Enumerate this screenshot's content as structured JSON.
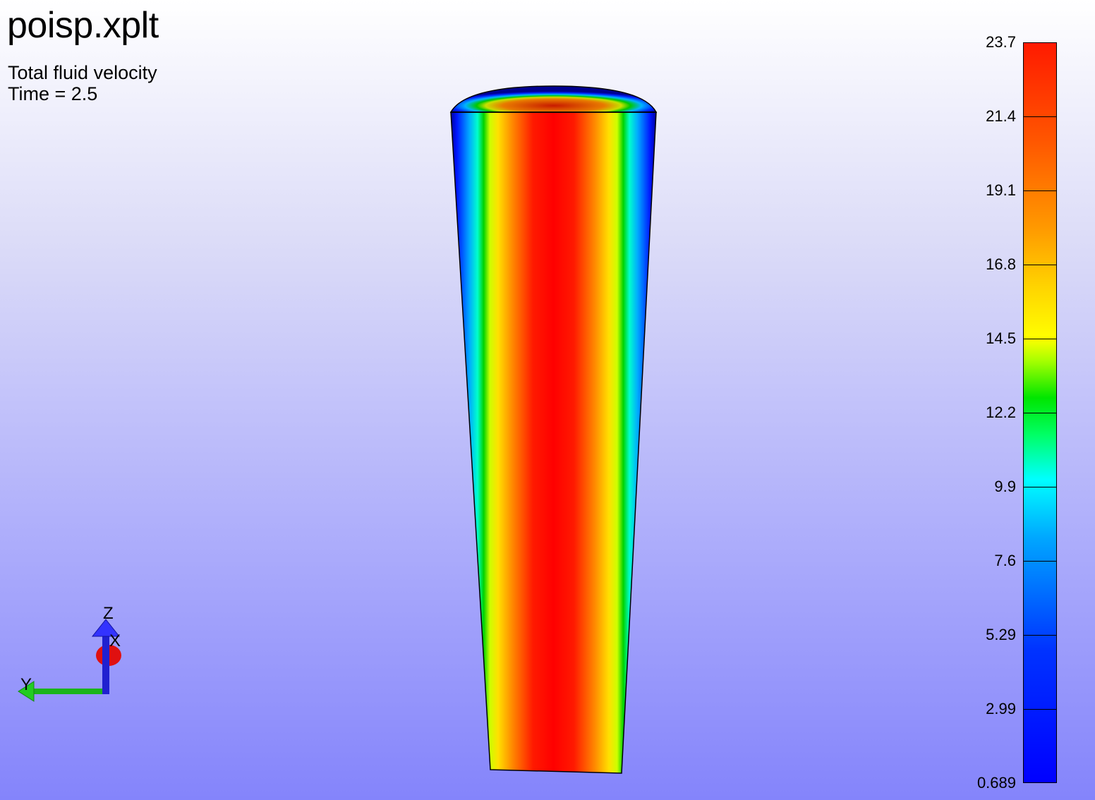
{
  "title": "poisp.xplt",
  "variable_label": "Total fluid velocity",
  "time_label": "Time = 2.5",
  "colorbar": {
    "labels": [
      "23.7",
      "21.4",
      "19.1",
      "16.8",
      "14.5",
      "12.2",
      "9.9",
      "7.6",
      "5.29",
      "2.99",
      "0.689"
    ]
  },
  "triad": {
    "x_label": "X",
    "y_label": "Y",
    "z_label": "Z"
  },
  "colors": {
    "max": "#ff0000",
    "min": "#0000ff",
    "background_top": "#ffffff",
    "background_bottom": "#8484fb"
  }
}
